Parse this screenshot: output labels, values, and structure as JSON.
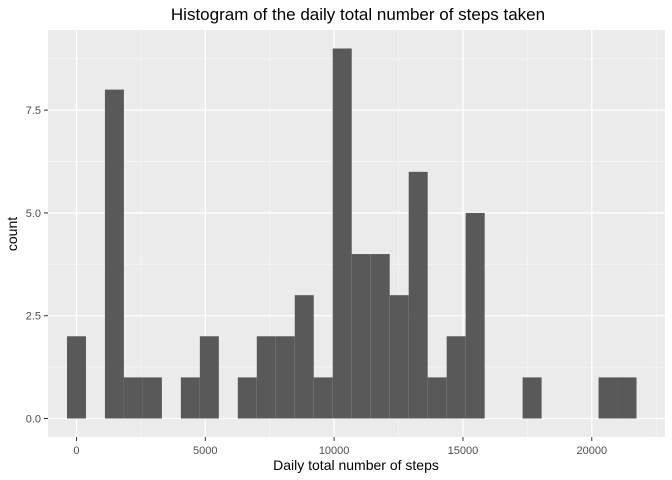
{
  "chart_data": {
    "type": "bar",
    "title": "Histogram of the daily total number of steps taken",
    "xlabel": "Daily total number of steps",
    "ylabel": "count",
    "binwidth": 736.8,
    "bins": [
      {
        "x": 0,
        "count": 2
      },
      {
        "x": 1473,
        "count": 8
      },
      {
        "x": 2210,
        "count": 1
      },
      {
        "x": 2947,
        "count": 1
      },
      {
        "x": 4420,
        "count": 1
      },
      {
        "x": 5157,
        "count": 2
      },
      {
        "x": 6630,
        "count": 1
      },
      {
        "x": 7367,
        "count": 2
      },
      {
        "x": 8104,
        "count": 2
      },
      {
        "x": 8841,
        "count": 3
      },
      {
        "x": 9578,
        "count": 1
      },
      {
        "x": 10315,
        "count": 9
      },
      {
        "x": 11052,
        "count": 4
      },
      {
        "x": 11789,
        "count": 4
      },
      {
        "x": 12526,
        "count": 3
      },
      {
        "x": 13263,
        "count": 6
      },
      {
        "x": 14000,
        "count": 1
      },
      {
        "x": 14737,
        "count": 2
      },
      {
        "x": 15474,
        "count": 5
      },
      {
        "x": 17684,
        "count": 1
      },
      {
        "x": 20631,
        "count": 1
      },
      {
        "x": 21368,
        "count": 1
      }
    ],
    "xlim": [
      -1105,
      22842
    ],
    "ylim": [
      -0.45,
      9.45
    ],
    "xticks": [
      0,
      5000,
      10000,
      15000,
      20000
    ],
    "xtick_labels": [
      "0",
      "5000",
      "10000",
      "15000",
      "20000"
    ],
    "yticks": [
      0,
      2.5,
      5,
      7.5
    ],
    "ytick_labels": [
      "0.0",
      "2.5",
      "5.0",
      "7.5"
    ],
    "grid": true,
    "colors": {
      "panel": "#ebebeb",
      "grid_major": "#ffffff",
      "bar": "#595959"
    }
  }
}
